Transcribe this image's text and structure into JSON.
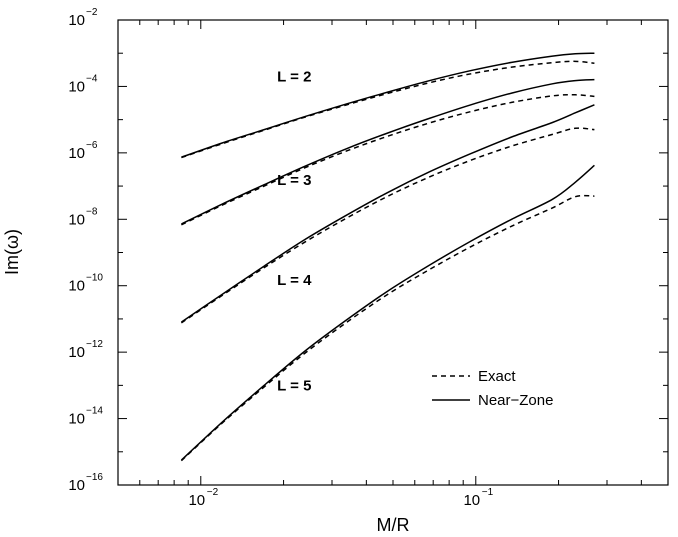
{
  "chart_data": {
    "type": "line",
    "xlabel": "M/R",
    "ylabel": "Im(ω)",
    "xscale": "log",
    "yscale": "log",
    "xlim": [
      0.005,
      0.5
    ],
    "ylim": [
      1e-16,
      0.01
    ],
    "grid": false,
    "legend_position": "bottom-right",
    "x_ticks": [
      {
        "value": 0.01,
        "base": "10",
        "exp": "−2"
      },
      {
        "value": 0.1,
        "base": "10",
        "exp": "−1"
      }
    ],
    "y_ticks": [
      {
        "value": 0.01,
        "base": "10",
        "exp": "−2"
      },
      {
        "value": 0.0001,
        "base": "10",
        "exp": "−4"
      },
      {
        "value": 1e-06,
        "base": "10",
        "exp": "−6"
      },
      {
        "value": 1e-08,
        "base": "10",
        "exp": "−8"
      },
      {
        "value": 1e-10,
        "base": "10",
        "exp": "−10"
      },
      {
        "value": 1e-12,
        "base": "10",
        "exp": "−12"
      },
      {
        "value": 1e-14,
        "base": "10",
        "exp": "−14"
      },
      {
        "value": 1e-16,
        "base": "10",
        "exp": "−16"
      }
    ],
    "legend": [
      {
        "label": "Exact",
        "style": "dashed"
      },
      {
        "label": "Near−Zone",
        "style": "solid"
      }
    ],
    "annotations": [
      {
        "text": "L = 2",
        "x": 0.0082,
        "y": 0.0002
      },
      {
        "text": "L = 3",
        "x": 0.0082,
        "y": 1.5e-07
      },
      {
        "text": "L = 4",
        "x": 0.0082,
        "y": 1.5e-10
      },
      {
        "text": "L = 5",
        "x": 0.0082,
        "y": 1e-13
      }
    ],
    "x": [
      0.0085,
      0.012,
      0.017,
      0.024,
      0.034,
      0.048,
      0.068,
      0.096,
      0.135,
      0.19,
      0.23,
      0.27
    ],
    "series": [
      {
        "name": "Exact",
        "L": 2,
        "style": "dashed",
        "values": [
          7.2e-07,
          1.9e-06,
          4.8e-06,
          1.2e-05,
          2.8e-05,
          6.2e-05,
          0.00013,
          0.00024,
          0.00038,
          0.00052,
          0.00057,
          0.0005
        ]
      },
      {
        "name": "Near−Zone",
        "L": 2,
        "style": "solid",
        "values": [
          7.4e-07,
          2e-06,
          5e-06,
          1.25e-05,
          3e-05,
          6.8e-05,
          0.00015,
          0.0003,
          0.00053,
          0.00082,
          0.00096,
          0.001
        ]
      },
      {
        "name": "Exact",
        "L": 3,
        "style": "dashed",
        "values": [
          6.8e-09,
          2.7e-08,
          1e-07,
          3.6e-07,
          1.15e-06,
          3.2e-06,
          8e-06,
          1.75e-05,
          3.3e-05,
          5.2e-05,
          5.6e-05,
          5e-05
        ]
      },
      {
        "name": "Near−Zone",
        "L": 3,
        "style": "solid",
        "values": [
          7.2e-09,
          2.9e-08,
          1.1e-07,
          4e-07,
          1.35e-06,
          4e-06,
          1.1e-05,
          2.8e-05,
          6.3e-05,
          0.00012,
          0.00015,
          0.00016
        ]
      },
      {
        "name": "Exact",
        "L": 4,
        "style": "dashed",
        "values": [
          7.6e-12,
          5.2e-11,
          3.5e-10,
          2.1e-09,
          1.1e-08,
          5e-08,
          1.9e-07,
          6e-07,
          1.6e-06,
          3.6e-06,
          5.5e-06,
          5e-06
        ]
      },
      {
        "name": "Near−Zone",
        "L": 4,
        "style": "solid",
        "values": [
          8e-12,
          5.6e-11,
          3.9e-10,
          2.5e-09,
          1.35e-08,
          6.5e-08,
          2.7e-07,
          9.5e-07,
          3e-06,
          8.2e-06,
          1.6e-05,
          2.8e-05
        ]
      },
      {
        "name": "Exact",
        "L": 5,
        "style": "dashed",
        "values": [
          5.4e-16,
          7.5e-15,
          9e-14,
          9.5e-13,
          8e-12,
          5.6e-11,
          3.1e-10,
          1.5e-09,
          6.2e-09,
          2.2e-08,
          4.8e-08,
          5e-08
        ]
      },
      {
        "name": "Near−Zone",
        "L": 5,
        "style": "solid",
        "values": [
          5.6e-16,
          8e-15,
          1e-13,
          1.1e-12,
          9.5e-12,
          7e-11,
          4.2e-10,
          2.2e-09,
          1e-08,
          4e-08,
          1.3e-07,
          4.2e-07
        ]
      }
    ]
  }
}
